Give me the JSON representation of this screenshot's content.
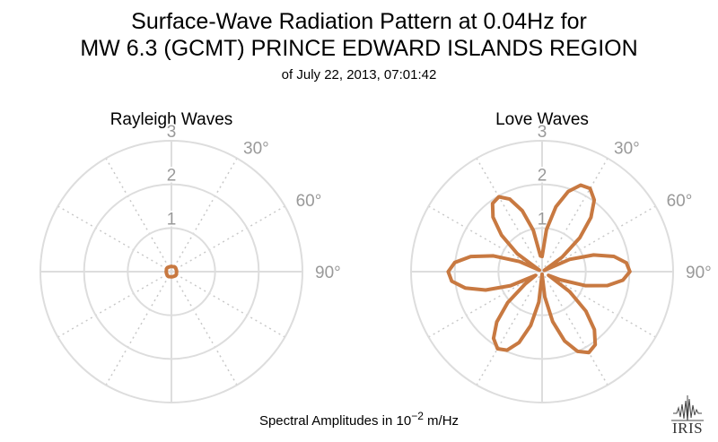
{
  "header": {
    "title_line1": "Surface-Wave Radiation Pattern at 0.04Hz for",
    "title_line2": "MW 6.3 (GCMT) PRINCE EDWARD ISLANDS REGION",
    "subtitle": "of July 22, 2013, 07:01:42"
  },
  "footer": {
    "caption_prefix": "Spectral Amplitudes in 10",
    "caption_exponent": "−2",
    "caption_suffix": " m/Hz"
  },
  "logo": {
    "text": "IRIS"
  },
  "colors": {
    "pattern": "#c87941",
    "grid": "#dddddd",
    "grid_dotted": "#c8c8c8",
    "label": "#999999"
  },
  "chart_data": [
    {
      "type": "polar-line",
      "title": "Rayleigh Waves",
      "radial_max": 3,
      "radial_ticks": [
        "1",
        "2",
        "3"
      ],
      "angle_labels": [
        "30°",
        "60°",
        "90°"
      ],
      "angle_unit": "degrees",
      "theta": [
        0,
        15,
        30,
        45,
        60,
        75,
        90,
        105,
        120,
        135,
        150,
        165,
        180,
        195,
        210,
        225,
        240,
        255,
        270,
        285,
        300,
        315,
        330,
        345,
        360
      ],
      "amplitude": [
        0.12,
        0.12,
        0.13,
        0.13,
        0.12,
        0.12,
        0.12,
        0.12,
        0.13,
        0.13,
        0.12,
        0.12,
        0.12,
        0.12,
        0.13,
        0.13,
        0.12,
        0.12,
        0.12,
        0.12,
        0.13,
        0.13,
        0.12,
        0.12,
        0.12
      ],
      "series_color": "#c87941",
      "grid": true
    },
    {
      "type": "polar-line",
      "title": "Love Waves",
      "radial_max": 3,
      "radial_ticks": [
        "1",
        "2",
        "3"
      ],
      "angle_labels": [
        "30°",
        "60°",
        "90°"
      ],
      "angle_unit": "degrees",
      "theta": [
        0,
        6,
        12,
        18,
        24,
        30,
        36,
        42,
        48,
        54,
        60,
        66,
        72,
        78,
        84,
        90,
        96,
        102,
        108,
        114,
        120,
        126,
        132,
        138,
        144,
        150,
        156,
        162,
        168,
        174,
        180,
        186,
        192,
        198,
        204,
        210,
        216,
        222,
        228,
        234,
        240,
        246,
        252,
        258,
        264,
        270,
        276,
        282,
        288,
        294,
        300,
        306,
        312,
        318,
        324,
        330,
        336,
        342,
        348,
        354,
        360
      ],
      "amplitude": [
        0.35,
        0.97,
        1.52,
        1.93,
        2.17,
        2.2,
        2.03,
        1.67,
        1.16,
        0.57,
        0.06,
        0.69,
        1.24,
        1.68,
        1.94,
        2.01,
        1.86,
        1.53,
        1.04,
        0.46,
        0.17,
        0.78,
        1.35,
        1.79,
        2.07,
        2.14,
        2.0,
        1.67,
        1.17,
        0.58,
        0.06,
        0.7,
        1.26,
        1.71,
        1.97,
        2.04,
        1.89,
        1.55,
        1.06,
        0.47,
        0.17,
        0.79,
        1.36,
        1.8,
        2.08,
        2.15,
        2.01,
        1.67,
        1.17,
        0.57,
        0.07,
        0.7,
        1.25,
        1.68,
        1.93,
        1.98,
        1.82,
        1.47,
        0.97,
        0.36,
        0.35
      ],
      "series_color": "#c87941",
      "grid": true
    }
  ]
}
